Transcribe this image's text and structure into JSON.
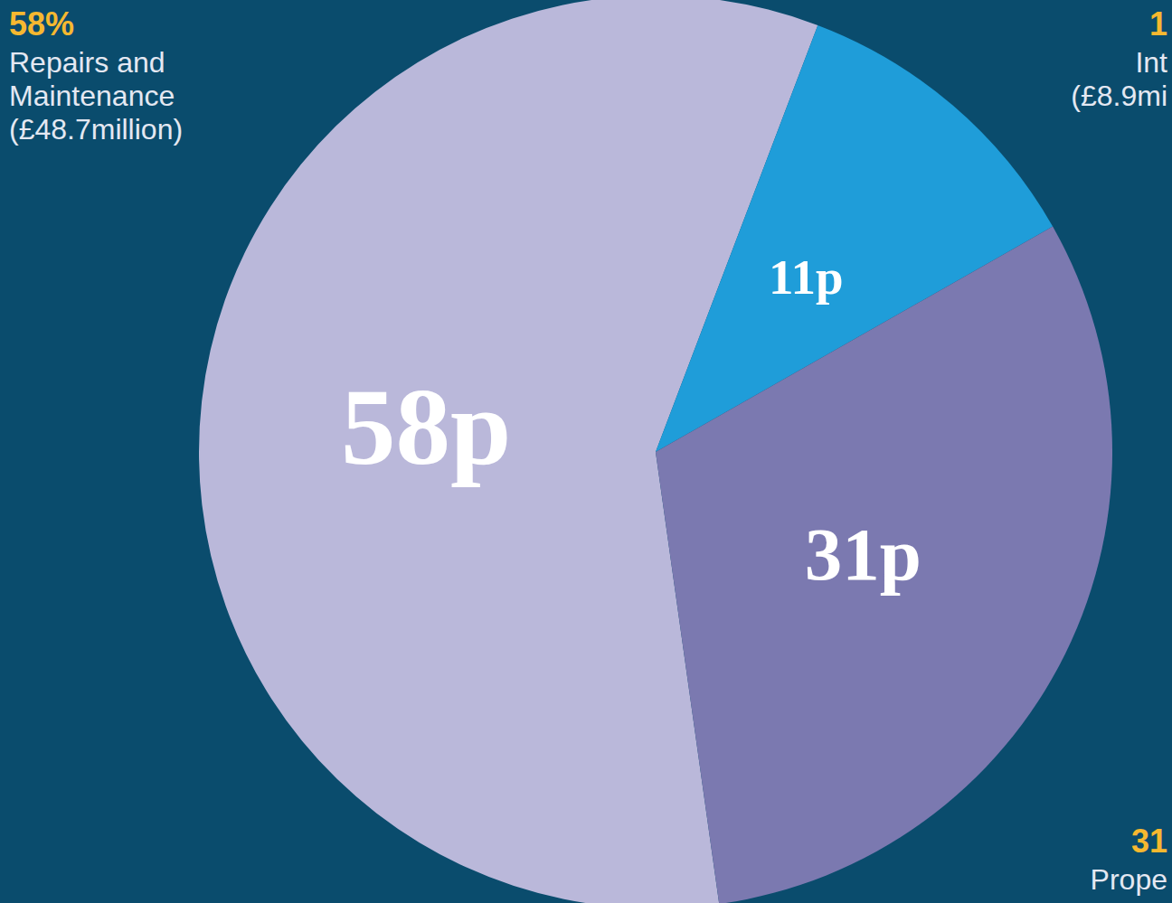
{
  "chart_data": {
    "type": "pie",
    "values": [
      58,
      11,
      31
    ],
    "value_labels": [
      "58p",
      "11p",
      "31p"
    ],
    "colors": [
      "#bab8da",
      "#1f9dd9",
      "#7b79b0"
    ],
    "data_labels": true,
    "annotations": [
      {
        "lines": [
          "58%",
          "Repairs and",
          "Maintenance",
          "(£48.7million)"
        ]
      },
      {
        "lines": [
          "1",
          "Int",
          "(£8.9mi"
        ]
      },
      {
        "lines": [
          "31",
          "Prope"
        ]
      }
    ]
  }
}
